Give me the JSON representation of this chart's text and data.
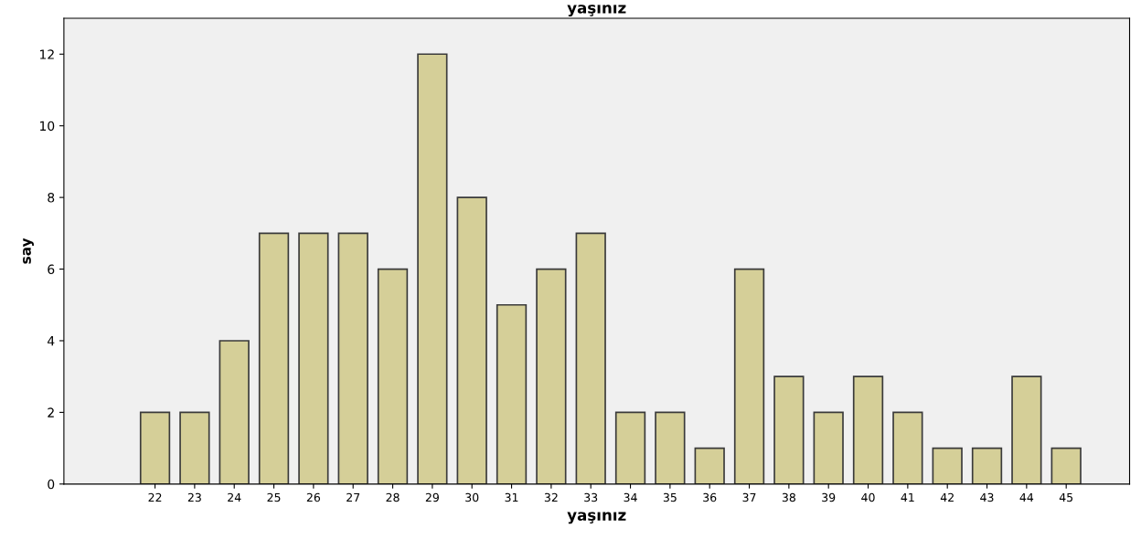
{
  "chart_data": {
    "type": "bar",
    "title": "yaşınız",
    "xlabel": "yaşınız",
    "ylabel": "say",
    "categories": [
      "22",
      "23",
      "24",
      "25",
      "26",
      "27",
      "28",
      "29",
      "30",
      "31",
      "32",
      "33",
      "34",
      "35",
      "36",
      "37",
      "38",
      "39",
      "40",
      "41",
      "42",
      "43",
      "44",
      "45"
    ],
    "values": [
      2,
      2,
      4,
      7,
      7,
      7,
      6,
      12,
      8,
      5,
      6,
      7,
      2,
      2,
      1,
      6,
      3,
      2,
      3,
      2,
      1,
      1,
      3,
      1
    ],
    "color": "#d5cf98",
    "ylim": [
      0,
      13
    ],
    "yticks": [
      {
        "value": 0,
        "label": "0"
      },
      {
        "value": 2,
        "label": "2"
      },
      {
        "value": 4,
        "label": "4"
      },
      {
        "value": 6,
        "label": "6"
      },
      {
        "value": 8,
        "label": "8"
      },
      {
        "value": 10,
        "label": "10"
      },
      {
        "value": 12,
        "label": "12"
      }
    ],
    "grid": false,
    "legend": false
  }
}
